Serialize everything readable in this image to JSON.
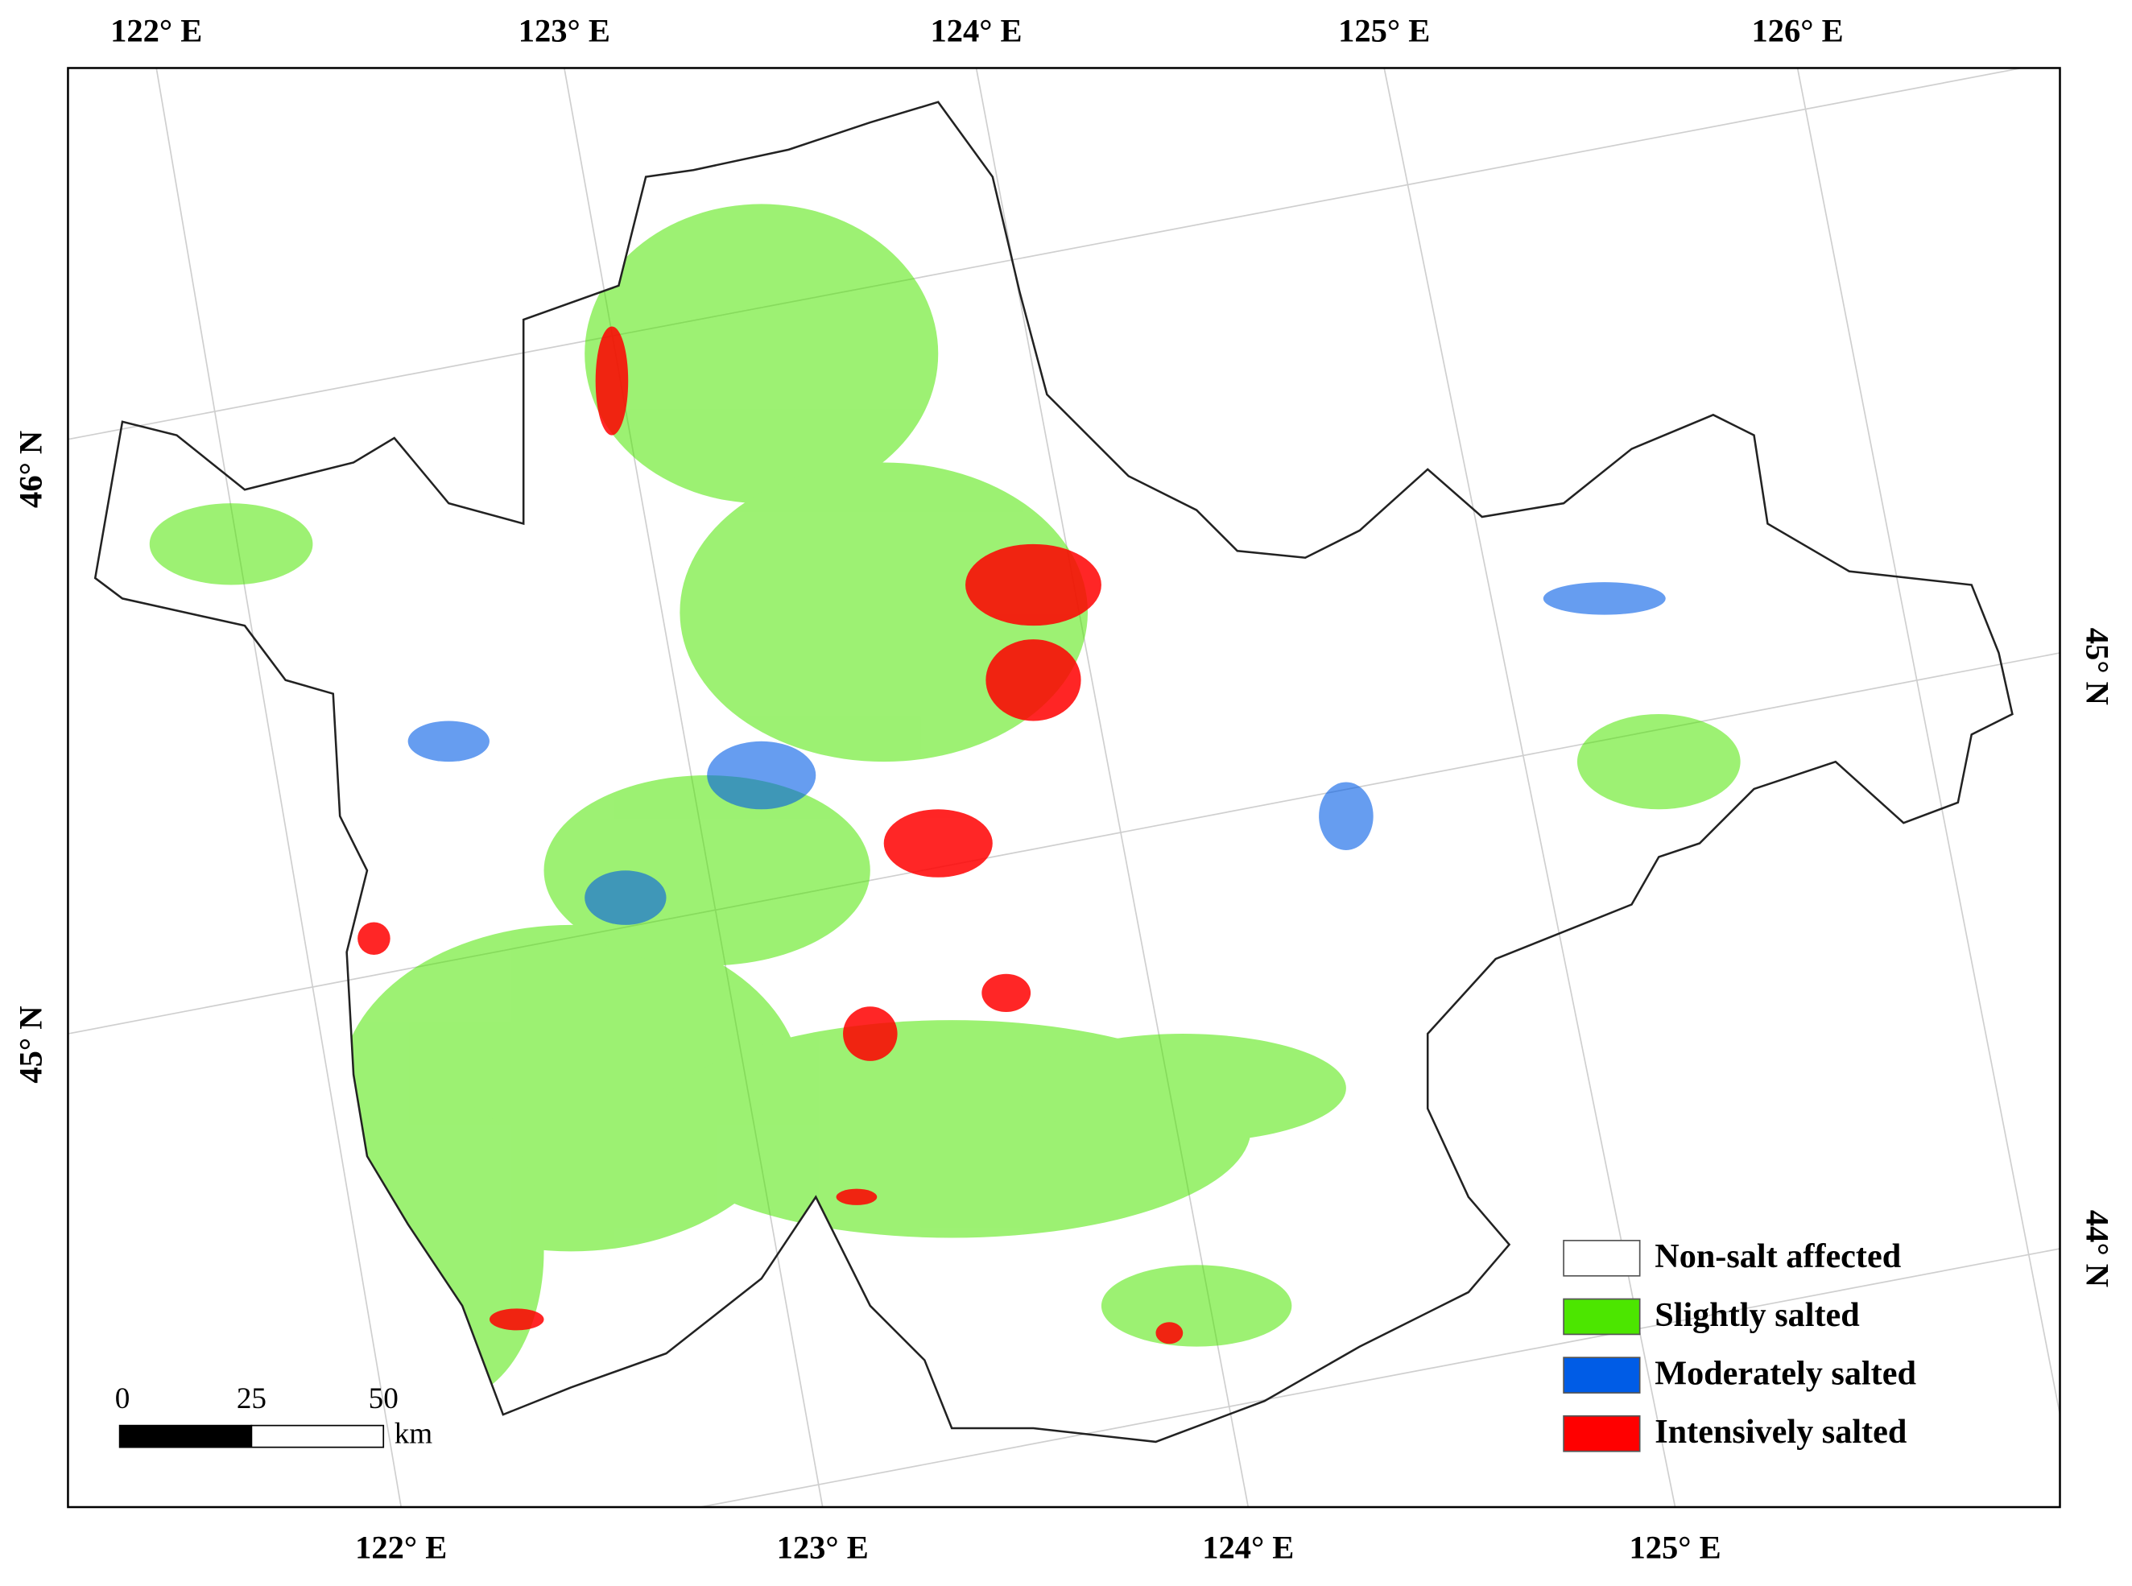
{
  "map": {
    "top_labels": [
      "122° E",
      "123° E",
      "124° E",
      "125° E",
      "126° E"
    ],
    "bottom_labels": [
      "122° E",
      "123° E",
      "124° E",
      "125° E"
    ],
    "left_labels": [
      "46° N",
      "45° N"
    ],
    "right_labels": [
      "45° N",
      "44° N"
    ],
    "legend": [
      {
        "label": "Non-salt affected",
        "color": "#ffffff"
      },
      {
        "label": "Slightly salted",
        "color": "#4ce600"
      },
      {
        "label": "Moderately salted",
        "color": "#005ce6"
      },
      {
        "label": "Intensively salted",
        "color": "#ff0000"
      }
    ],
    "scale_bar": {
      "ticks": [
        0,
        25,
        50
      ],
      "unit": "km"
    }
  }
}
